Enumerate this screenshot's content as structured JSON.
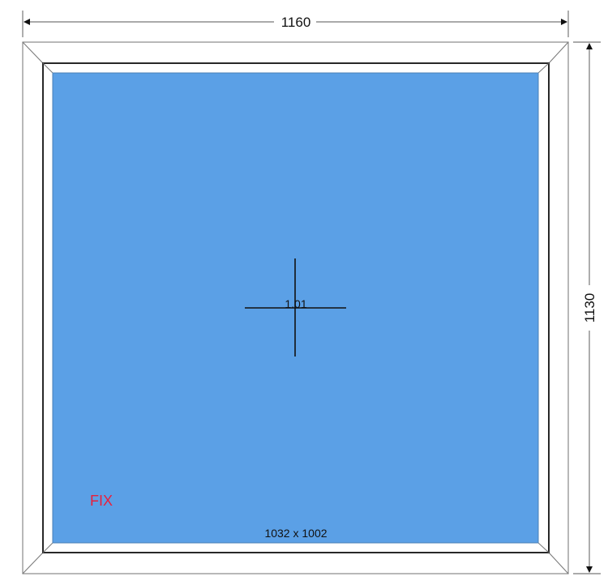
{
  "dimensions": {
    "width": "1160",
    "height": "1130"
  },
  "pane": {
    "number": "1.01",
    "type": "FIX",
    "glass_size": "1032 x 1002"
  },
  "colors": {
    "glass": "#5ba0e6",
    "type_label": "#e8203c",
    "frame": "#ffffff"
  }
}
